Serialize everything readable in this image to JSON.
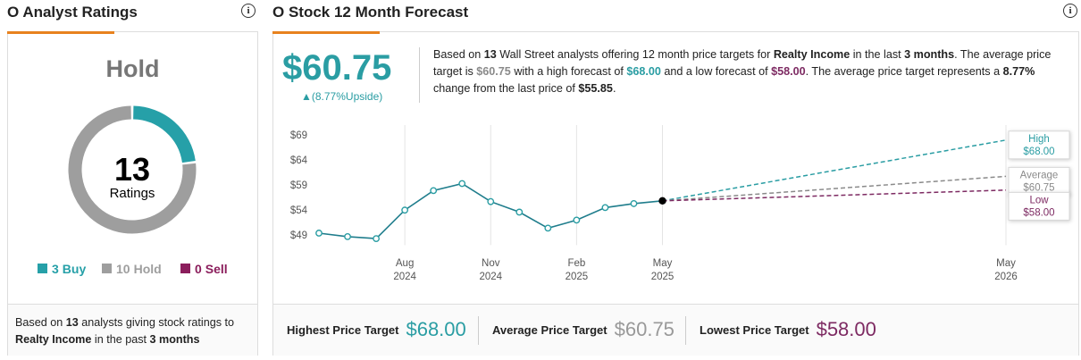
{
  "ratings_panel": {
    "title": "O Analyst Ratings",
    "consensus": "Hold",
    "footer": [
      "Based on ",
      "13",
      " analysts giving stock ratings to ",
      "Realty Income",
      " in the past ",
      "3 months"
    ]
  },
  "forecast_panel": {
    "title": "O Stock 12 Month Forecast",
    "price_target": "$60.75",
    "upside": "▲(8.77%Upside)",
    "description": [
      "Based on ",
      "13",
      " Wall Street analysts offering 12 month price targets for ",
      "Realty Income",
      " in the last ",
      "3 months",
      ". The average price target is ",
      "$60.75",
      " with a high forecast of ",
      "$68.00",
      " and a low forecast of ",
      "$58.00",
      ". The average price target represents a ",
      "8.77%",
      " change from the last price of ",
      "$55.85",
      "."
    ],
    "summary": [
      {
        "label": "Highest Price Target",
        "value": "$68.00"
      },
      {
        "label": "Average Price Target",
        "value": "$60.75"
      },
      {
        "label": "Lowest Price Target",
        "value": "$58.00"
      }
    ]
  },
  "chart_data": [
    {
      "type": "donut",
      "total": 13,
      "total_label": "Ratings",
      "categories": [
        "Buy",
        "Hold",
        "Sell"
      ],
      "values": [
        3,
        10,
        0
      ],
      "colors": [
        "#26a0a8",
        "#9e9e9e",
        "#8b1e5c"
      ]
    },
    {
      "type": "line",
      "x": [
        "2024-05",
        "2024-06",
        "2024-07",
        "2024-08",
        "2024-09",
        "2024-10",
        "2024-11",
        "2024-12",
        "2025-01",
        "2025-02",
        "2025-03",
        "2025-04",
        "2025-05"
      ],
      "series": [
        {
          "color": "#1f7d8c",
          "values": [
            49.4,
            48.7,
            48.3,
            54.0,
            57.9,
            59.3,
            55.7,
            53.6,
            50.4,
            52.0,
            54.5,
            55.3,
            55.85
          ]
        }
      ],
      "forecast_x": "2025-05",
      "forecast_end": "2026-05",
      "forecasts": [
        {
          "name": "High",
          "target": 68,
          "target_label": "$68.00",
          "color": "#2a9da3"
        },
        {
          "name": "Average",
          "target": 60.75,
          "target_label": "$60.75",
          "color": "#8a8a8a"
        },
        {
          "name": "Low",
          "target": 58,
          "target_label": "$58.00",
          "color": "#7d2a62"
        }
      ],
      "xlim": [
        "2024-05",
        "2026-05"
      ],
      "xticks": [
        {
          "value": "2024-08",
          "label": "Aug 2024"
        },
        {
          "value": "2024-11",
          "label": "Nov 2024"
        },
        {
          "value": "2025-02",
          "label": "Feb 2025"
        },
        {
          "value": "2025-05",
          "label": "May 2025"
        },
        {
          "value": "2026-05",
          "label": "May 2026"
        }
      ],
      "ylim": [
        47,
        71
      ],
      "yticks": [
        {
          "value": 49,
          "label": "$49"
        },
        {
          "value": 54,
          "label": "$54"
        },
        {
          "value": 59,
          "label": "$59"
        },
        {
          "value": 64,
          "label": "$64"
        },
        {
          "value": 69,
          "label": "$69"
        }
      ],
      "grid": true
    }
  ]
}
